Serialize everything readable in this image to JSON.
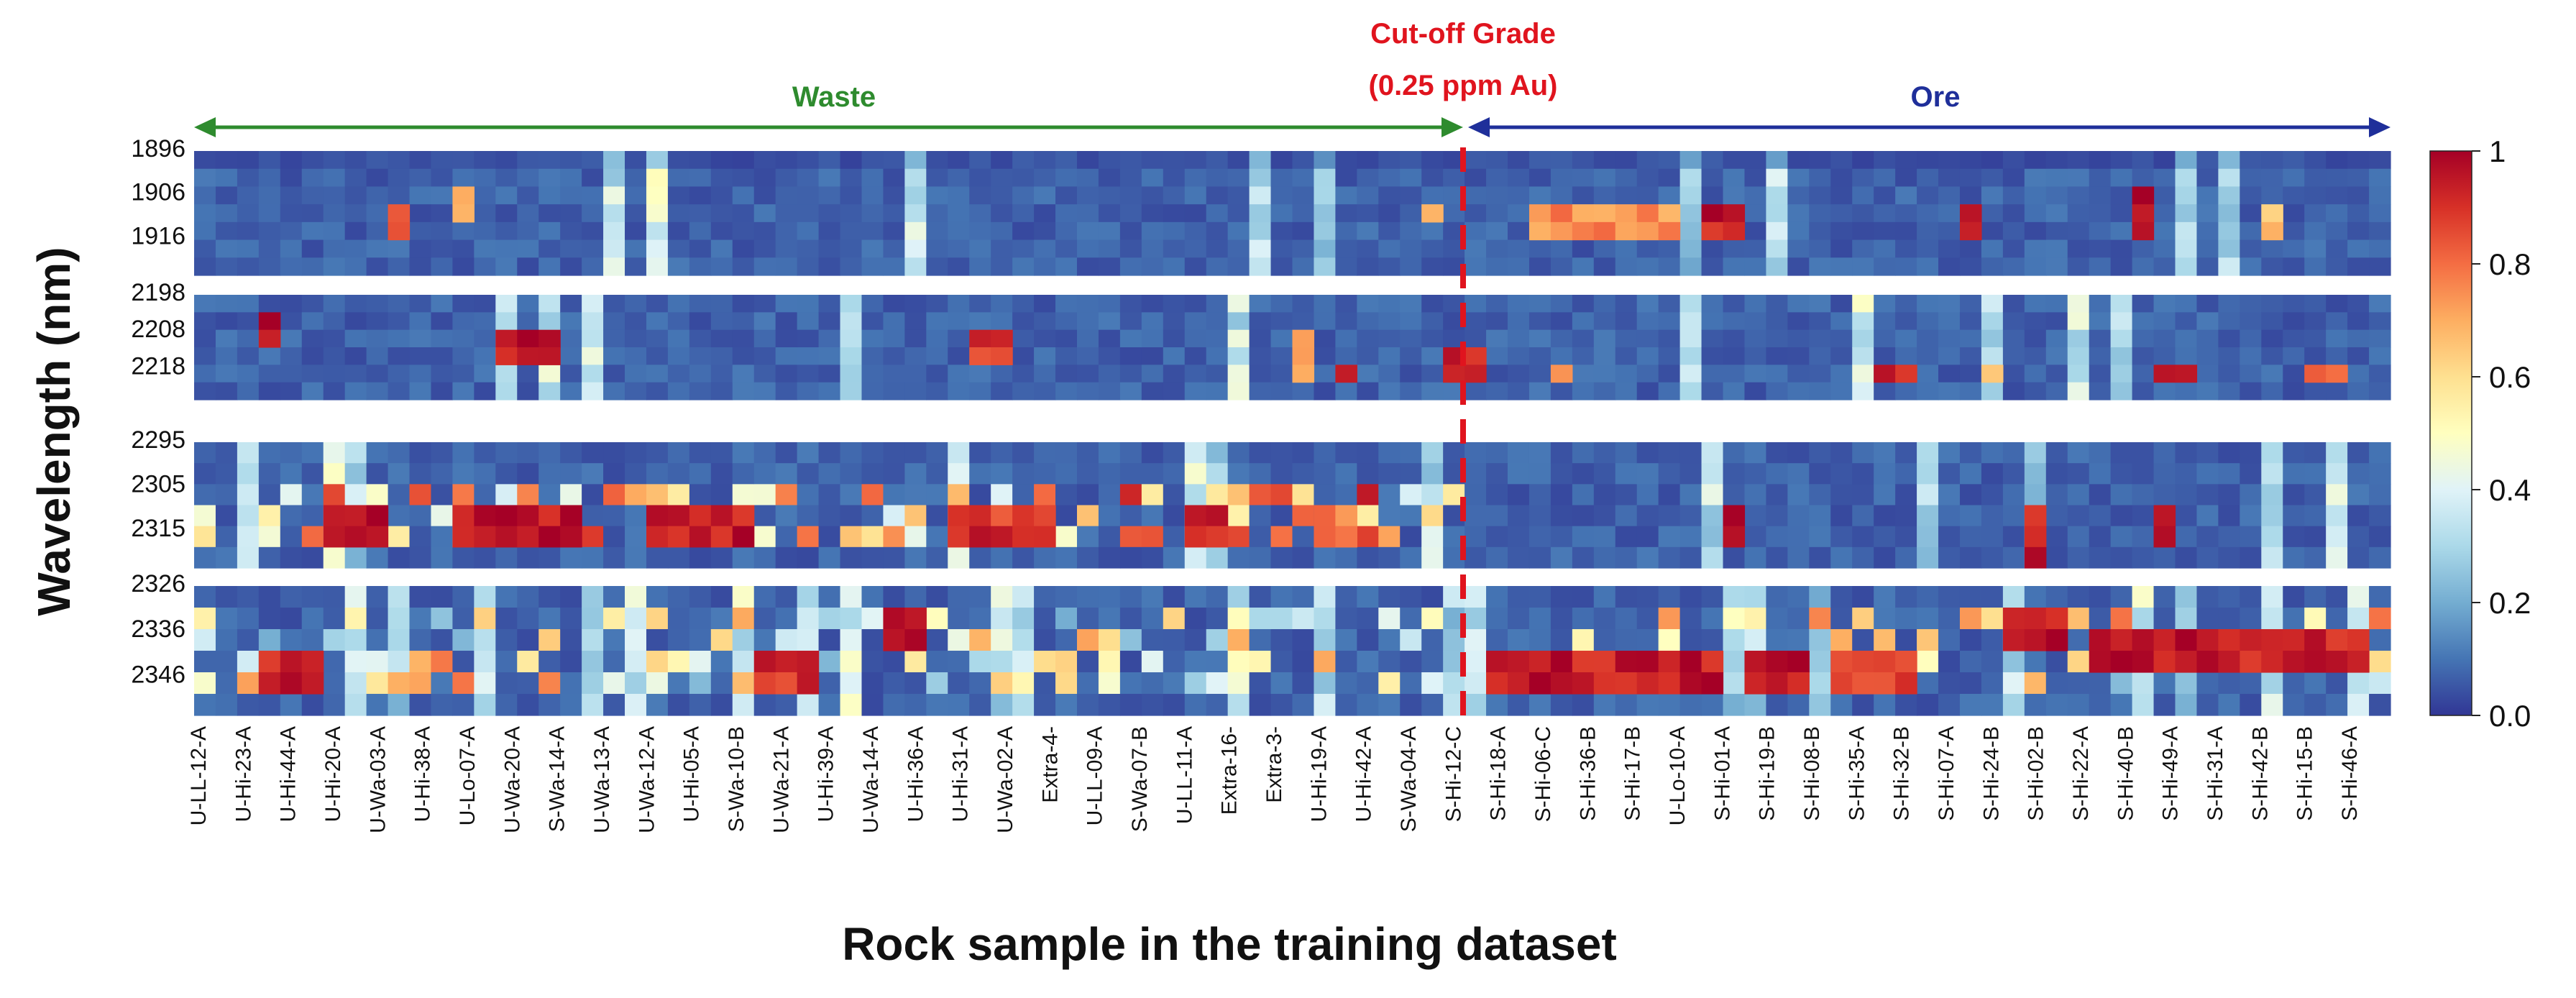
{
  "chart_data": {
    "type": "heatmap",
    "title": "",
    "xlabel": "Rock sample in the training dataset",
    "ylabel": "Wavelength (nm)",
    "colormap": "RdYlBu_r",
    "value_range": [
      0.0,
      1.0
    ],
    "colorbar_ticks": [
      "1",
      "0.8",
      "0.6",
      "0.4",
      "0.2",
      "0.0"
    ],
    "sample_count": 102,
    "cutoff_after_sample": 58,
    "x_tick_labels": [
      "U-LL-12-A",
      "U-Hi-23-A",
      "U-Hi-44-A",
      "U-Hi-20-A",
      "U-Wa-03-A",
      "U-Hi-38-A",
      "U-Lo-07-A",
      "U-Wa-20-A",
      "S-Wa-14-A",
      "U-Wa-13-A",
      "U-Wa-12-A",
      "U-Hi-05-A",
      "S-Wa-10-B",
      "U-Wa-21-A",
      "U-Hi-39-A",
      "U-Wa-14-A",
      "U-Hi-36-A",
      "U-Hi-31-A",
      "U-Wa-02-A",
      "Extra-4-",
      "U-LL-09-A",
      "S-Wa-07-B",
      "U-LL-11-A",
      "Extra-16-",
      "Extra-3-",
      "U-Hi-19-A",
      "U-Hi-42-A",
      "S-Wa-04-A",
      "S-Hi-12-C",
      "S-Hi-18-A",
      "S-Hi-06-C",
      "S-Hi-36-B",
      "S-Hi-17-B",
      "U-Lo-10-A",
      "S-Hi-01-A",
      "S-Hi-19-B",
      "S-Hi-08-B",
      "S-Hi-35-A",
      "S-Hi-32-B",
      "S-Hi-07-A",
      "S-Hi-24-B",
      "S-Hi-02-B",
      "S-Hi-22-A",
      "S-Hi-40-B",
      "S-Hi-49-A",
      "S-Hi-31-A",
      "S-Hi-42-B",
      "S-Hi-15-B",
      "S-Hi-46-A"
    ],
    "bands": [
      {
        "tick_labels": [
          "1896",
          "1906",
          "1916"
        ],
        "rows": 7
      },
      {
        "tick_labels": [
          "2198",
          "2208",
          "2218"
        ],
        "rows": 6
      },
      {
        "tick_labels": [
          "2295",
          "2305",
          "2315"
        ],
        "rows": 6
      },
      {
        "tick_labels": [
          "2326",
          "2336",
          "2346"
        ],
        "rows": 6
      }
    ],
    "hotspots": [
      {
        "band": 0,
        "from": 9,
        "to": 9,
        "rowFrom": 3,
        "rowTo": 4,
        "value": 0.9
      },
      {
        "band": 0,
        "from": 12,
        "to": 12,
        "rowFrom": 2,
        "rowTo": 3,
        "value": 0.65
      },
      {
        "band": 0,
        "from": 57,
        "to": 57,
        "rowFrom": 3,
        "rowTo": 3,
        "value": 0.7
      },
      {
        "band": 0,
        "from": 62,
        "to": 68,
        "rowFrom": 3,
        "rowTo": 4,
        "value": 0.75
      },
      {
        "band": 0,
        "from": 70,
        "to": 71,
        "rowFrom": 3,
        "rowTo": 4,
        "value": 0.95
      },
      {
        "band": 0,
        "from": 82,
        "to": 82,
        "rowFrom": 3,
        "rowTo": 4,
        "value": 0.95
      },
      {
        "band": 0,
        "from": 90,
        "to": 90,
        "rowFrom": 2,
        "rowTo": 4,
        "value": 0.95
      },
      {
        "band": 0,
        "from": 96,
        "to": 96,
        "rowFrom": 3,
        "rowTo": 4,
        "value": 0.7
      },
      {
        "band": 1,
        "from": 3,
        "to": 3,
        "rowFrom": 1,
        "rowTo": 2,
        "value": 0.95
      },
      {
        "band": 1,
        "from": 14,
        "to": 16,
        "rowFrom": 2,
        "rowTo": 3,
        "value": 0.95
      },
      {
        "band": 1,
        "from": 36,
        "to": 37,
        "rowFrom": 2,
        "rowTo": 3,
        "value": 0.9
      },
      {
        "band": 1,
        "from": 51,
        "to": 51,
        "rowFrom": 2,
        "rowTo": 4,
        "value": 0.7
      },
      {
        "band": 1,
        "from": 53,
        "to": 53,
        "rowFrom": 4,
        "rowTo": 4,
        "value": 0.9
      },
      {
        "band": 1,
        "from": 58,
        "to": 59,
        "rowFrom": 3,
        "rowTo": 4,
        "value": 0.95
      },
      {
        "band": 1,
        "from": 63,
        "to": 63,
        "rowFrom": 4,
        "rowTo": 4,
        "value": 0.7
      },
      {
        "band": 1,
        "from": 78,
        "to": 79,
        "rowFrom": 4,
        "rowTo": 4,
        "value": 0.95
      },
      {
        "band": 1,
        "from": 83,
        "to": 83,
        "rowFrom": 4,
        "rowTo": 4,
        "value": 0.7
      },
      {
        "band": 1,
        "from": 91,
        "to": 92,
        "rowFrom": 4,
        "rowTo": 4,
        "value": 0.9
      },
      {
        "band": 1,
        "from": 98,
        "to": 99,
        "rowFrom": 4,
        "rowTo": 4,
        "value": 0.85
      },
      {
        "band": 2,
        "from": 6,
        "to": 8,
        "rowFrom": 3,
        "rowTo": 4,
        "value": 0.95
      },
      {
        "band": 2,
        "from": 12,
        "to": 17,
        "rowFrom": 3,
        "rowTo": 4,
        "value": 0.95
      },
      {
        "band": 2,
        "from": 21,
        "to": 25,
        "rowFrom": 3,
        "rowTo": 4,
        "value": 0.95
      },
      {
        "band": 2,
        "from": 35,
        "to": 39,
        "rowFrom": 3,
        "rowTo": 4,
        "value": 0.9
      },
      {
        "band": 2,
        "from": 46,
        "to": 47,
        "rowFrom": 3,
        "rowTo": 4,
        "value": 0.9
      },
      {
        "band": 2,
        "from": 52,
        "to": 53,
        "rowFrom": 3,
        "rowTo": 4,
        "value": 0.75
      },
      {
        "band": 2,
        "from": 71,
        "to": 71,
        "rowFrom": 3,
        "rowTo": 4,
        "value": 0.95
      },
      {
        "band": 2,
        "from": 85,
        "to": 85,
        "rowFrom": 3,
        "rowTo": 5,
        "value": 0.95
      },
      {
        "band": 2,
        "from": 91,
        "to": 91,
        "rowFrom": 3,
        "rowTo": 4,
        "value": 0.9
      },
      {
        "band": 3,
        "from": 3,
        "to": 5,
        "rowFrom": 3,
        "rowTo": 4,
        "value": 0.95
      },
      {
        "band": 3,
        "from": 26,
        "to": 28,
        "rowFrom": 3,
        "rowTo": 4,
        "value": 0.9
      },
      {
        "band": 3,
        "from": 32,
        "to": 33,
        "rowFrom": 1,
        "rowTo": 2,
        "value": 0.95
      },
      {
        "band": 3,
        "from": 60,
        "to": 70,
        "rowFrom": 3,
        "rowTo": 4,
        "value": 0.95
      },
      {
        "band": 3,
        "from": 72,
        "to": 74,
        "rowFrom": 3,
        "rowTo": 4,
        "value": 0.95
      },
      {
        "band": 3,
        "from": 76,
        "to": 79,
        "rowFrom": 3,
        "rowTo": 4,
        "value": 0.9
      },
      {
        "band": 3,
        "from": 84,
        "to": 86,
        "rowFrom": 1,
        "rowTo": 2,
        "value": 0.95
      },
      {
        "band": 3,
        "from": 88,
        "to": 100,
        "rowFrom": 2,
        "rowTo": 3,
        "value": 0.95
      }
    ],
    "annotations": {
      "waste_label": "Waste",
      "ore_label": "Ore",
      "cutoff_label_line1": "Cut-off Grade",
      "cutoff_label_line2": "(0.25 ppm Au)"
    },
    "colors": {
      "waste": "#2e8b2e",
      "ore": "#1f2f9a",
      "cutoff": "#e0141e"
    }
  }
}
